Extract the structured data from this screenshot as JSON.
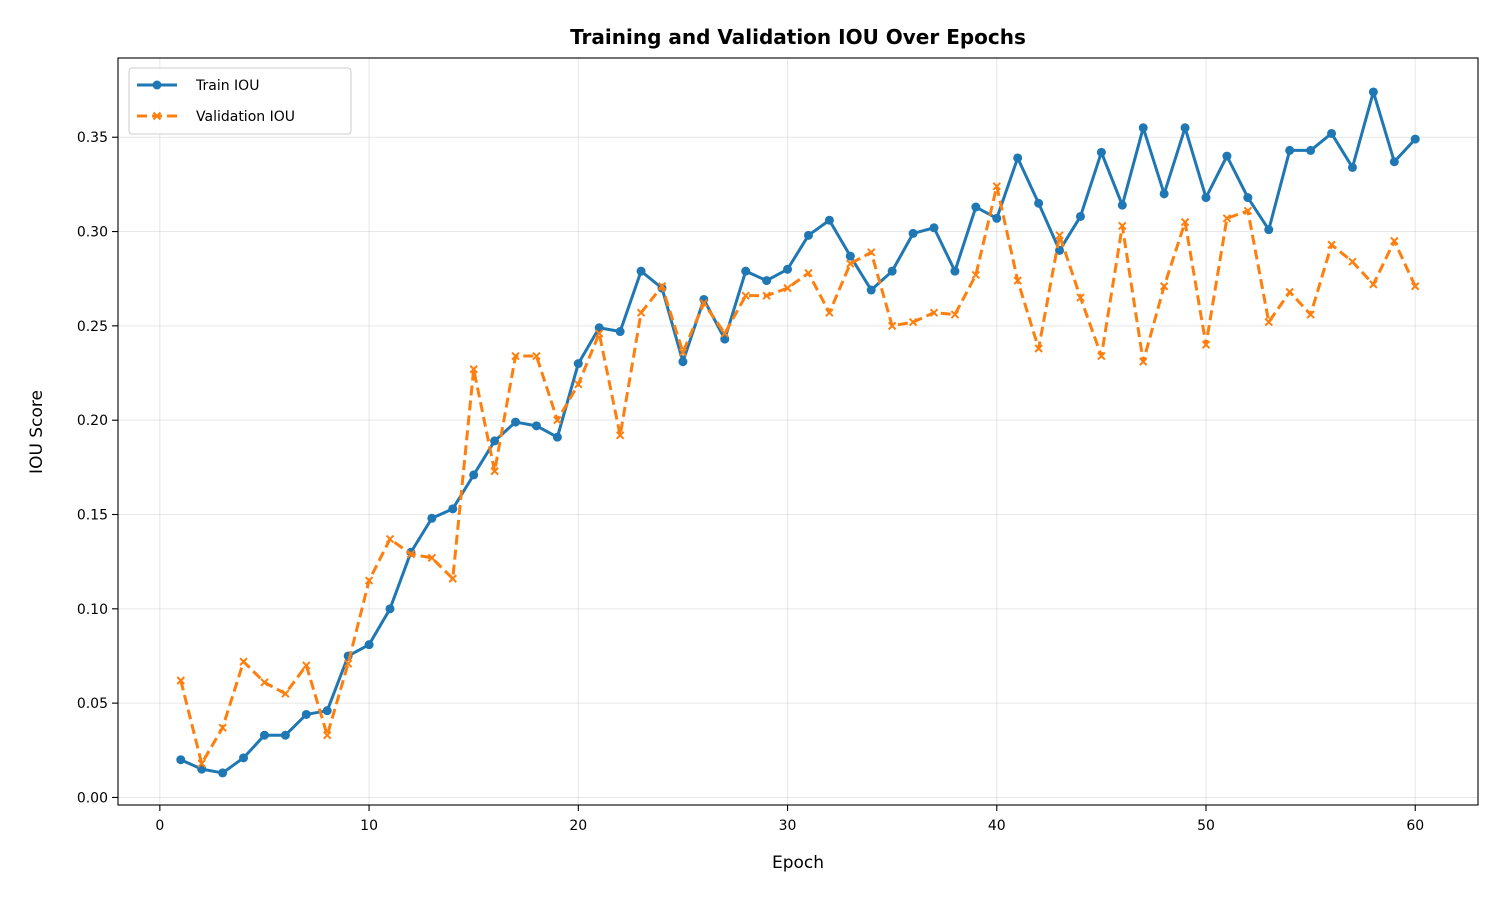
{
  "chart_data": {
    "type": "line",
    "title": "Training and Validation IOU Over Epochs",
    "xlabel": "Epoch",
    "ylabel": "IOU Score",
    "xlim": [
      -2,
      63
    ],
    "ylim": [
      -0.004,
      0.392
    ],
    "xticks": [
      0,
      10,
      20,
      30,
      40,
      50,
      60
    ],
    "yticks": [
      0.0,
      0.05,
      0.1,
      0.15,
      0.2,
      0.25,
      0.3,
      0.35
    ],
    "ytick_labels": [
      "0.00",
      "0.05",
      "0.10",
      "0.15",
      "0.20",
      "0.25",
      "0.30",
      "0.35"
    ],
    "grid": true,
    "legend_position": "top-left",
    "x": [
      1,
      2,
      3,
      4,
      5,
      6,
      7,
      8,
      9,
      10,
      11,
      12,
      13,
      14,
      15,
      16,
      17,
      18,
      19,
      20,
      21,
      22,
      23,
      24,
      25,
      26,
      27,
      28,
      29,
      30,
      31,
      32,
      33,
      34,
      35,
      36,
      37,
      38,
      39,
      40,
      41,
      42,
      43,
      44,
      45,
      46,
      47,
      48,
      49,
      50,
      51,
      52,
      53,
      54,
      55,
      56,
      57,
      58,
      59,
      60
    ],
    "series": [
      {
        "name": "Train IOU",
        "color": "#1f77b4",
        "marker": "circle",
        "line_style": "solid",
        "values": [
          0.02,
          0.015,
          0.013,
          0.021,
          0.033,
          0.033,
          0.044,
          0.046,
          0.075,
          0.081,
          0.1,
          0.13,
          0.148,
          0.153,
          0.171,
          0.189,
          0.199,
          0.197,
          0.191,
          0.23,
          0.249,
          0.247,
          0.279,
          0.27,
          0.231,
          0.264,
          0.243,
          0.279,
          0.274,
          0.28,
          0.298,
          0.306,
          0.287,
          0.269,
          0.279,
          0.299,
          0.302,
          0.279,
          0.313,
          0.307,
          0.339,
          0.315,
          0.29,
          0.308,
          0.342,
          0.314,
          0.355,
          0.32,
          0.355,
          0.318,
          0.34,
          0.318,
          0.301,
          0.343,
          0.343,
          0.352,
          0.334,
          0.374,
          0.337,
          0.349
        ]
      },
      {
        "name": "Validation IOU",
        "color": "#ff7f0e",
        "marker": "x",
        "line_style": "dashed",
        "values": [
          0.062,
          0.018,
          0.037,
          0.072,
          0.061,
          0.055,
          0.07,
          0.033,
          0.071,
          0.115,
          0.137,
          0.129,
          0.127,
          0.116,
          0.227,
          0.173,
          0.234,
          0.234,
          0.2,
          0.219,
          0.246,
          0.192,
          0.257,
          0.271,
          0.236,
          0.262,
          0.246,
          0.266,
          0.266,
          0.27,
          0.278,
          0.257,
          0.283,
          0.289,
          0.25,
          0.252,
          0.257,
          0.256,
          0.277,
          0.324,
          0.274,
          0.238,
          0.298,
          0.265,
          0.234,
          0.303,
          0.231,
          0.271,
          0.305,
          0.24,
          0.307,
          0.311,
          0.252,
          0.268,
          0.256,
          0.293,
          0.284,
          0.272,
          0.295,
          0.271
        ]
      }
    ]
  }
}
